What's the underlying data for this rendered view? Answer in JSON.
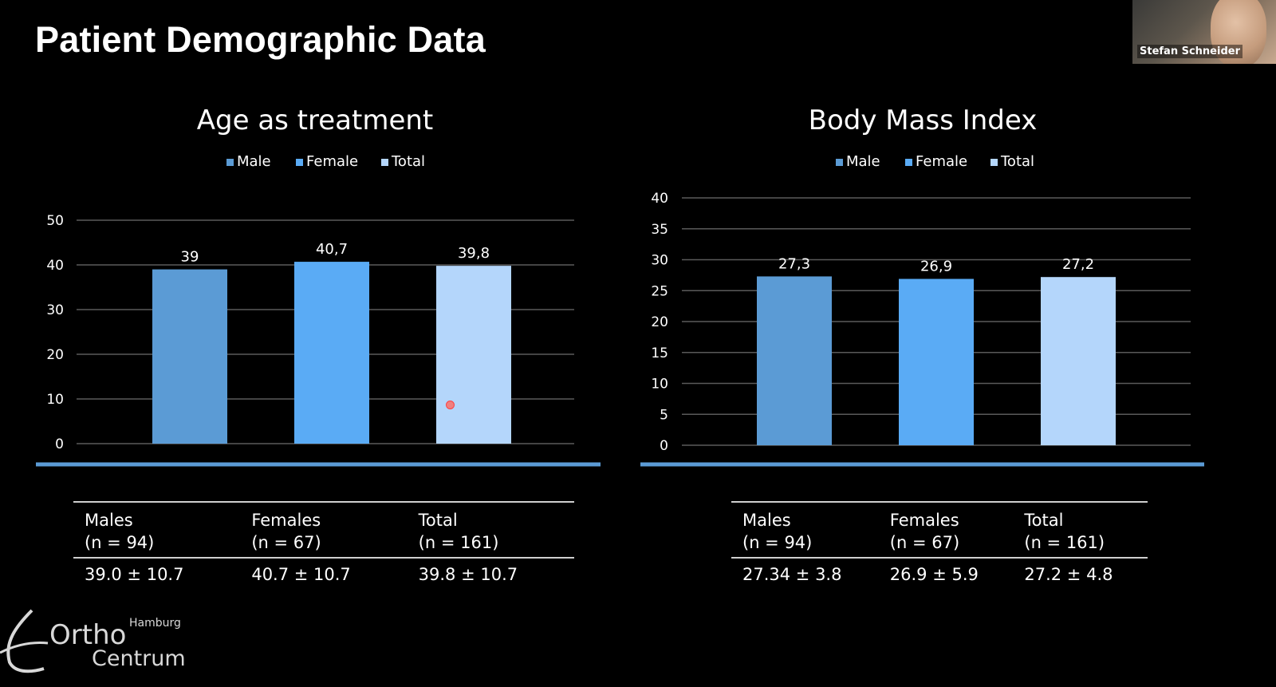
{
  "slide": {
    "title": "Patient Demographic Data"
  },
  "presenter": {
    "name": "Stefan Schneider"
  },
  "logo": {
    "line1": "Ortho",
    "line2": "Centrum",
    "city": "Hamburg"
  },
  "colors": {
    "male": "#5b9bd5",
    "female": "#5aabf5",
    "total": "#b4d6fb",
    "divider": "#5b9bd5",
    "grid": "#5a5a5a"
  },
  "chart_data": [
    {
      "type": "bar",
      "title": "Age as treatment",
      "legend": [
        "Male",
        "Female",
        "Total"
      ],
      "legend_position": "top",
      "categories": [
        "Male",
        "Female",
        "Total"
      ],
      "values": [
        39,
        40.7,
        39.8
      ],
      "value_labels": [
        "39",
        "40,7",
        "39,8"
      ],
      "ylim": [
        0,
        50
      ],
      "yticks": [
        0,
        10,
        20,
        30,
        40,
        50
      ],
      "grid": true,
      "xlabel": "",
      "ylabel": ""
    },
    {
      "type": "bar",
      "title": "Body Mass Index",
      "legend": [
        "Male",
        "Female",
        "Total"
      ],
      "legend_position": "top",
      "categories": [
        "Male",
        "Female",
        "Total"
      ],
      "values": [
        27.3,
        26.9,
        27.2
      ],
      "value_labels": [
        "27,3",
        "26,9",
        "27,2"
      ],
      "ylim": [
        0,
        40
      ],
      "yticks": [
        0,
        5,
        10,
        15,
        20,
        25,
        30,
        35,
        40
      ],
      "grid": true,
      "xlabel": "",
      "ylabel": ""
    }
  ],
  "tables": {
    "age": {
      "headers": [
        {
          "label": "Males",
          "n": "(n = 94)"
        },
        {
          "label": "Females",
          "n": "(n = 67)"
        },
        {
          "label": "Total",
          "n": "(n = 161)"
        }
      ],
      "values": [
        "39.0 ± 10.7",
        "40.7 ± 10.7",
        "39.8 ± 10.7"
      ]
    },
    "bmi": {
      "headers": [
        {
          "label": "Males",
          "n": "(n = 94)"
        },
        {
          "label": "Females",
          "n": "(n = 67)"
        },
        {
          "label": "Total",
          "n": "(n = 161)"
        }
      ],
      "values": [
        "27.34 ± 3.8",
        "26.9 ± 5.9",
        "27.2 ± 4.8"
      ]
    }
  }
}
